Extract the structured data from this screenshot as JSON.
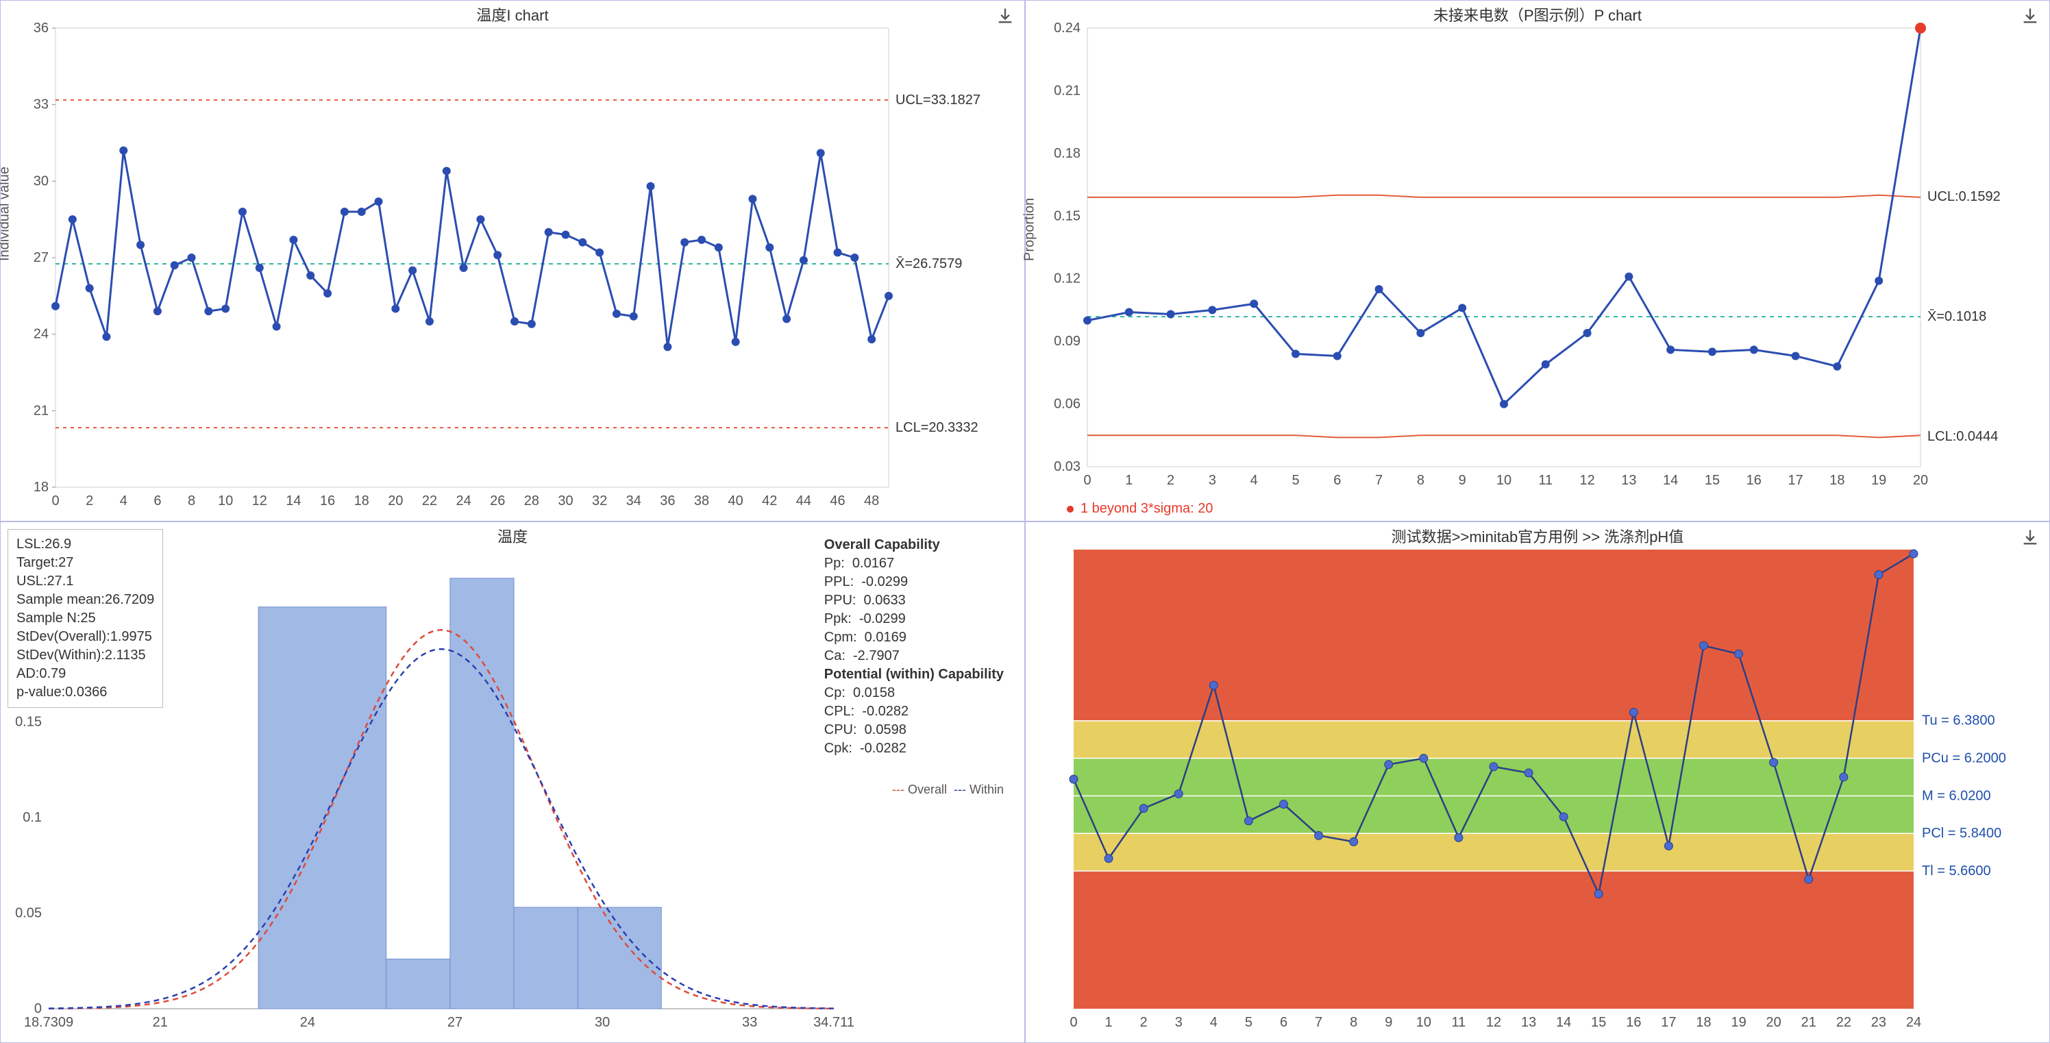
{
  "colors": {
    "panel_border": "#b9b9e8",
    "axis": "#666666",
    "grid": "#e8e8e8",
    "line_blue": "#2b4db1",
    "marker_blue": "#2b4db1",
    "ucl_red": "#e45b3a",
    "lcl_red": "#e45b3a",
    "mean_teal": "#2fb8a3",
    "outlier_red": "#e63a2a",
    "bar_fill": "#91aee0",
    "bar_stroke": "#6f8ccc",
    "curve_overall": "#dd4a3a",
    "curve_within": "#2a3fb1",
    "zone_red": "#e35b3e",
    "zone_yellow": "#e8cf61",
    "zone_green": "#8fcf5b",
    "zone_label": "#1f4fae"
  },
  "ichart": {
    "title": "温度I  chart",
    "ylabel": "Individual value",
    "ymin": 18,
    "ymax": 36,
    "ytick_step": 3,
    "xmin": 0,
    "xmax": 49,
    "xtick_step": 2,
    "ucl": 33.1827,
    "ucl_label": "UCL=33.1827",
    "mean": 26.7579,
    "mean_label": "X̄=26.7579",
    "lcl": 20.3332,
    "lcl_label": "LCL=20.3332",
    "values": [
      25.1,
      28.5,
      25.8,
      23.9,
      31.2,
      27.5,
      24.9,
      26.7,
      27.0,
      24.9,
      25.0,
      28.8,
      26.6,
      24.3,
      27.7,
      26.3,
      25.6,
      28.8,
      28.8,
      29.2,
      25.0,
      26.5,
      24.5,
      30.4,
      26.6,
      28.5,
      27.1,
      24.5,
      24.4,
      28.0,
      27.9,
      27.6,
      27.2,
      24.8,
      24.7,
      29.8,
      23.5,
      27.6,
      27.7,
      27.4,
      23.7,
      29.3,
      27.4,
      24.6,
      26.9,
      31.1,
      27.2,
      27.0,
      23.8,
      25.5
    ]
  },
  "pchart": {
    "title": "未接来电数（P图示例）P chart",
    "ylabel": "Proportion",
    "ymin": 0.03,
    "ymax": 0.24,
    "ytick_step": 0.03,
    "xmin": 0,
    "xmax": 20,
    "ucl": 0.1592,
    "ucl_label": "UCL:0.1592",
    "mean": 0.1018,
    "mean_label": "X̄=0.1018",
    "lcl": 0.0444,
    "lcl_label": "LCL:0.0444",
    "ucl_series": [
      0.159,
      0.159,
      0.159,
      0.159,
      0.159,
      0.159,
      0.16,
      0.16,
      0.159,
      0.159,
      0.159,
      0.159,
      0.159,
      0.159,
      0.159,
      0.159,
      0.159,
      0.159,
      0.159,
      0.16,
      0.159
    ],
    "lcl_series": [
      0.045,
      0.045,
      0.045,
      0.045,
      0.045,
      0.045,
      0.044,
      0.044,
      0.045,
      0.045,
      0.045,
      0.045,
      0.045,
      0.045,
      0.045,
      0.045,
      0.045,
      0.045,
      0.045,
      0.044,
      0.045
    ],
    "values": [
      0.1,
      0.104,
      0.103,
      0.105,
      0.108,
      0.084,
      0.083,
      0.115,
      0.094,
      0.106,
      0.06,
      0.079,
      0.094,
      0.121,
      0.086,
      0.085,
      0.086,
      0.083,
      0.078,
      0.119,
      0.24
    ],
    "outlier_index": 20,
    "footnote": "1 beyond 3*sigma: 20",
    "footnote_bullet_color": "#e63a2a"
  },
  "hist": {
    "title": "温度",
    "xmin": 18.7309,
    "xmax": 34.711,
    "ymin": 0,
    "ymax": 0.24,
    "ytick_step": 0.05,
    "xticks": [
      18.7309,
      21,
      24,
      27,
      30,
      33,
      34.711
    ],
    "bars": [
      {
        "x0": 23.0,
        "x1": 25.6,
        "y": 0.21
      },
      {
        "x0": 25.6,
        "x1": 26.9,
        "y": 0.026
      },
      {
        "x0": 26.9,
        "x1": 28.2,
        "y": 0.225
      },
      {
        "x0": 28.2,
        "x1": 29.5,
        "y": 0.053
      },
      {
        "x0": 29.5,
        "x1": 31.2,
        "y": 0.053
      }
    ],
    "curve_overall": {
      "mean": 26.72,
      "sd": 1.9975,
      "amp": 0.198
    },
    "curve_within": {
      "mean": 26.72,
      "sd": 2.1135,
      "amp": 0.188
    },
    "legend": {
      "overall": "Overall",
      "within": "Within"
    },
    "stats": {
      "LSL": "26.9",
      "Target": "27",
      "USL": "27.1",
      "Sample_mean": "26.7209",
      "Sample_N": "25",
      "StDev_Overall": "1.9975",
      "StDev_Within": "2.1135",
      "AD": "0.79",
      "p_value": "0.0366"
    },
    "stats_labels": {
      "LSL": "LSL:",
      "Target": "Target:",
      "USL": "USL:",
      "Sample_mean": "Sample mean:",
      "Sample_N": "Sample N:",
      "StDev_Overall": "StDev(Overall):",
      "StDev_Within": "StDev(Within):",
      "AD": "AD:",
      "p_value": "p-value:"
    },
    "cap": {
      "overall_header": "Overall Capability",
      "Pp": "0.0167",
      "PPL": "-0.0299",
      "PPU": "0.0633",
      "Ppk": "-0.0299",
      "Cpm": "0.0169",
      "Ca": "-2.7907",
      "within_header": "Potential (within) Capability",
      "Cp": "0.0158",
      "CPL": "-0.0282",
      "CPU": "0.0598",
      "Cpk": "-0.0282"
    },
    "cap_labels": {
      "Pp": "Pp:",
      "PPL": "PPL:",
      "PPU": "PPU:",
      "Ppk": "Ppk:",
      "Cpm": "Cpm:",
      "Ca": "Ca:",
      "Cp": "Cp:",
      "CPL": "CPL:",
      "CPU": "CPU:",
      "Cpk": "Cpk:"
    }
  },
  "zone": {
    "title": "测试数据>>minitab官方用例 >> 洗涤剂pH值",
    "ymin": 5.0,
    "ymax": 7.2,
    "xmin": 0,
    "xmax": 24,
    "bands": [
      {
        "from": 7.2,
        "to": 6.38,
        "color": "#e35b3e"
      },
      {
        "from": 6.38,
        "to": 6.2,
        "color": "#e8cf61"
      },
      {
        "from": 6.2,
        "to": 5.84,
        "color": "#8fcf5b"
      },
      {
        "from": 5.84,
        "to": 5.66,
        "color": "#e8cf61"
      },
      {
        "from": 5.66,
        "to": 5.0,
        "color": "#e35b3e"
      }
    ],
    "lines": [
      {
        "y": 6.38,
        "label": "Tu = 6.3800"
      },
      {
        "y": 6.2,
        "label": "PCu = 6.2000"
      },
      {
        "y": 6.02,
        "label": "M = 6.0200"
      },
      {
        "y": 5.84,
        "label": "PCl = 5.8400"
      },
      {
        "y": 5.66,
        "label": "Tl = 5.6600"
      }
    ],
    "values": [
      6.1,
      5.72,
      5.96,
      6.03,
      6.55,
      5.9,
      5.98,
      5.83,
      5.8,
      6.17,
      6.2,
      5.82,
      6.16,
      6.13,
      5.92,
      5.55,
      6.42,
      5.78,
      6.74,
      6.7,
      6.18,
      5.62,
      6.11,
      7.08,
      7.18
    ]
  }
}
